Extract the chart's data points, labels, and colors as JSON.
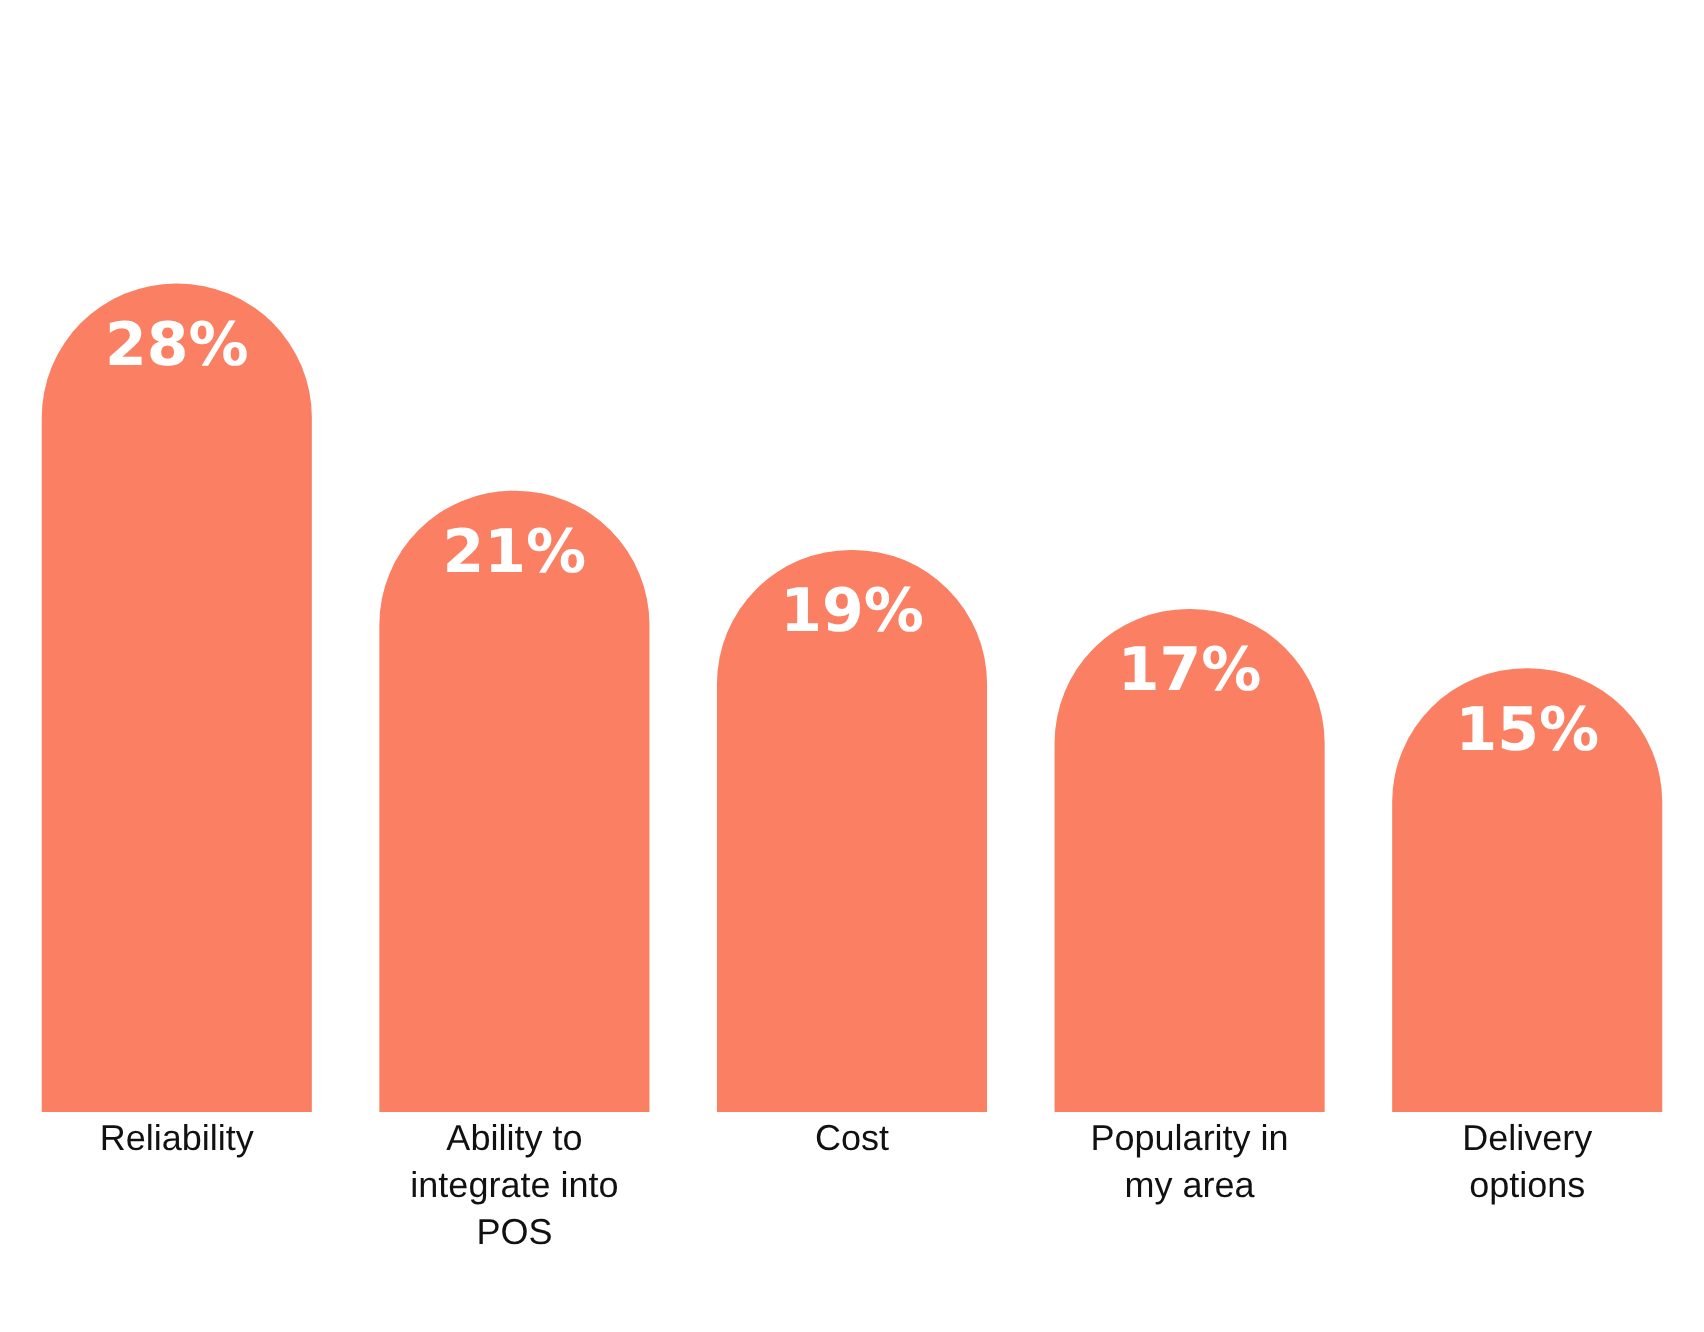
{
  "chart_data": {
    "type": "bar",
    "categories": [
      "Reliability",
      "Ability to integrate into POS",
      "Cost",
      "Popularity in my area",
      "Delivery options"
    ],
    "values": [
      28,
      21,
      19,
      17,
      15
    ],
    "value_labels": [
      "28%",
      "21%",
      "19%",
      "17%",
      "15%"
    ],
    "color": "#fa7f63",
    "grid": false
  }
}
